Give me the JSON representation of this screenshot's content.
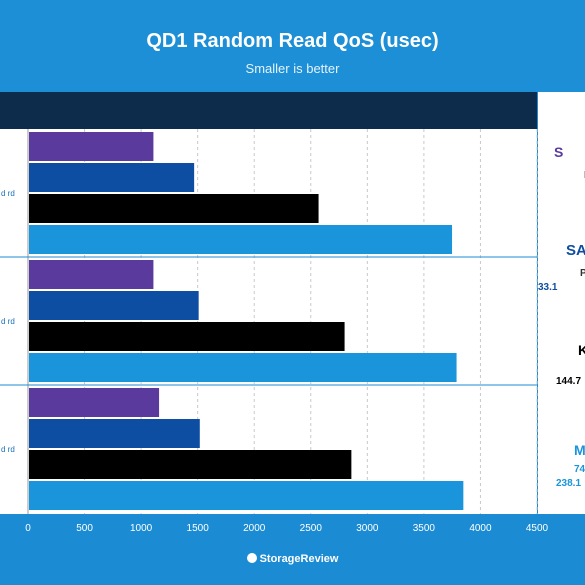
{
  "chart_data": {
    "type": "bar",
    "orientation": "horizontal",
    "title": "QD1 Random Read QoS (usec)",
    "subtitle": "Smaller is better",
    "group_labels": [
      "d rd",
      "d rd",
      "d rd"
    ],
    "series": [
      {
        "color": "#5b3a9e",
        "values": [
          1100,
          1100,
          1150
        ]
      },
      {
        "color": "#0e4ea2",
        "values": [
          1460,
          1500,
          1510
        ]
      },
      {
        "color": "#000000",
        "values": [
          2560,
          2790,
          2850
        ]
      },
      {
        "color": "#1a94da",
        "values": [
          3740,
          3780,
          3840
        ]
      }
    ],
    "xlim": [
      0,
      4500
    ],
    "xticks": [
      "0",
      "500",
      "1000",
      "1500",
      "2000",
      "2500",
      "3000",
      "3500",
      "4000",
      "4500"
    ],
    "grid": "vertical dashed"
  },
  "side_panel": {
    "items": [
      {
        "text": "S",
        "color": "#5b3a9e"
      },
      {
        "text": "P",
        "color": "#333333"
      },
      {
        "text": "SA",
        "color": "#0e4ea2"
      },
      {
        "text": "P",
        "color": "#333333"
      },
      {
        "text": "33.1",
        "color": "#0e4ea2"
      },
      {
        "text": "K",
        "color": "#000000"
      },
      {
        "text": "144.7",
        "color": "#000000"
      },
      {
        "text": "M",
        "color": "#1a94da"
      },
      {
        "text": "74",
        "color": "#1a94da"
      },
      {
        "text": "238.1",
        "color": "#1a94da"
      }
    ]
  },
  "footer": {
    "brand": "StorageReview"
  }
}
